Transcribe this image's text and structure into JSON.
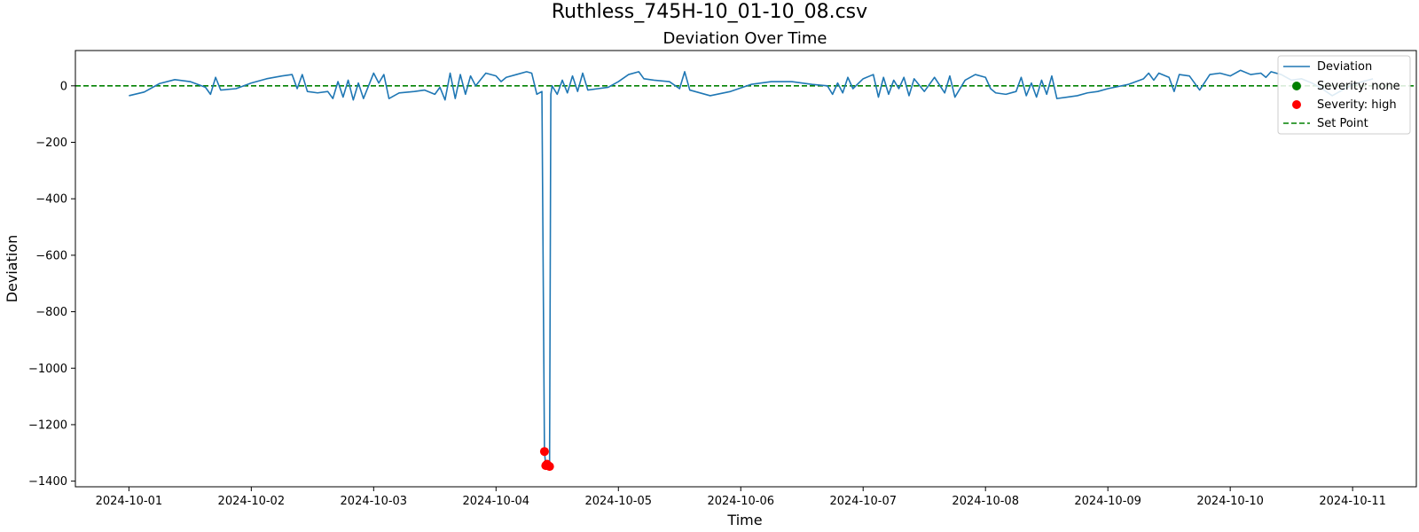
{
  "figure": {
    "suptitle": "Ruthless_745H-10_01-10_08.csv"
  },
  "chart_data": {
    "type": "line",
    "title": "Deviation Over Time",
    "xlabel": "Time",
    "ylabel": "Deviation",
    "x_type": "datetime",
    "xlim": [
      "2024-09-30T13:30:00",
      "2024-10-11T12:30:00"
    ],
    "ylim": [
      -1420,
      125
    ],
    "xticks": [
      "2024-10-01",
      "2024-10-02",
      "2024-10-03",
      "2024-10-04",
      "2024-10-05",
      "2024-10-06",
      "2024-10-07",
      "2024-10-08",
      "2024-10-09",
      "2024-10-10",
      "2024-10-11"
    ],
    "yticks": [
      0,
      -200,
      -400,
      -600,
      -800,
      -1000,
      -1200,
      -1400
    ],
    "ytick_labels": [
      "0",
      "−200",
      "−400",
      "−600",
      "−800",
      "−1000",
      "−1200",
      "−1400"
    ],
    "grid": false,
    "legend_position": "upper-right",
    "series": [
      {
        "name": "Deviation",
        "kind": "line",
        "color": "#1f77b4",
        "points": [
          [
            "2024-10-01T00:00",
            -35
          ],
          [
            "2024-10-01T03:00",
            -22
          ],
          [
            "2024-10-01T06:00",
            8
          ],
          [
            "2024-10-01T09:00",
            22
          ],
          [
            "2024-10-01T12:00",
            15
          ],
          [
            "2024-10-01T15:00",
            -5
          ],
          [
            "2024-10-01T16:00",
            -30
          ],
          [
            "2024-10-01T17:00",
            30
          ],
          [
            "2024-10-01T18:00",
            -15
          ],
          [
            "2024-10-01T21:00",
            -10
          ],
          [
            "2024-10-02T00:00",
            10
          ],
          [
            "2024-10-02T03:00",
            25
          ],
          [
            "2024-10-02T06:00",
            35
          ],
          [
            "2024-10-02T08:00",
            40
          ],
          [
            "2024-10-02T09:00",
            -10
          ],
          [
            "2024-10-02T10:00",
            40
          ],
          [
            "2024-10-02T11:00",
            -20
          ],
          [
            "2024-10-02T13:00",
            -25
          ],
          [
            "2024-10-02T15:00",
            -20
          ],
          [
            "2024-10-02T16:00",
            -45
          ],
          [
            "2024-10-02T17:00",
            15
          ],
          [
            "2024-10-02T18:00",
            -40
          ],
          [
            "2024-10-02T19:00",
            20
          ],
          [
            "2024-10-02T20:00",
            -50
          ],
          [
            "2024-10-02T21:00",
            10
          ],
          [
            "2024-10-02T22:00",
            -45
          ],
          [
            "2024-10-03T00:00",
            45
          ],
          [
            "2024-10-03T01:00",
            10
          ],
          [
            "2024-10-03T02:00",
            40
          ],
          [
            "2024-10-03T03:00",
            -45
          ],
          [
            "2024-10-03T05:00",
            -25
          ],
          [
            "2024-10-03T08:00",
            -20
          ],
          [
            "2024-10-03T10:00",
            -15
          ],
          [
            "2024-10-03T12:00",
            -30
          ],
          [
            "2024-10-03T13:00",
            -5
          ],
          [
            "2024-10-03T14:00",
            -50
          ],
          [
            "2024-10-03T15:00",
            45
          ],
          [
            "2024-10-03T16:00",
            -45
          ],
          [
            "2024-10-03T17:00",
            40
          ],
          [
            "2024-10-03T18:00",
            -30
          ],
          [
            "2024-10-03T19:00",
            35
          ],
          [
            "2024-10-03T20:00",
            0
          ],
          [
            "2024-10-03T22:00",
            45
          ],
          [
            "2024-10-04T00:00",
            35
          ],
          [
            "2024-10-04T01:00",
            15
          ],
          [
            "2024-10-04T02:00",
            30
          ],
          [
            "2024-10-04T04:00",
            40
          ],
          [
            "2024-10-04T06:00",
            50
          ],
          [
            "2024-10-04T07:00",
            45
          ],
          [
            "2024-10-04T08:00",
            -30
          ],
          [
            "2024-10-04T09:00",
            -20
          ],
          [
            "2024-10-04T09:30",
            -1295
          ],
          [
            "2024-10-04T09:45",
            -1345
          ],
          [
            "2024-10-04T10:00",
            -1340
          ],
          [
            "2024-10-04T10:15",
            -1345
          ],
          [
            "2024-10-04T10:30",
            -1348
          ],
          [
            "2024-10-04T10:45",
            -30
          ],
          [
            "2024-10-04T11:00",
            0
          ],
          [
            "2024-10-04T12:00",
            -30
          ],
          [
            "2024-10-04T13:00",
            20
          ],
          [
            "2024-10-04T14:00",
            -25
          ],
          [
            "2024-10-04T15:00",
            35
          ],
          [
            "2024-10-04T16:00",
            -20
          ],
          [
            "2024-10-04T17:00",
            45
          ],
          [
            "2024-10-04T18:00",
            -15
          ],
          [
            "2024-10-04T20:00",
            -10
          ],
          [
            "2024-10-04T22:00",
            -5
          ],
          [
            "2024-10-05T00:00",
            15
          ],
          [
            "2024-10-05T02:00",
            40
          ],
          [
            "2024-10-05T04:00",
            50
          ],
          [
            "2024-10-05T05:00",
            25
          ],
          [
            "2024-10-05T07:00",
            20
          ],
          [
            "2024-10-05T10:00",
            15
          ],
          [
            "2024-10-05T12:00",
            -10
          ],
          [
            "2024-10-05T13:00",
            50
          ],
          [
            "2024-10-05T14:00",
            -15
          ],
          [
            "2024-10-05T18:00",
            -35
          ],
          [
            "2024-10-05T22:00",
            -20
          ],
          [
            "2024-10-06T02:00",
            5
          ],
          [
            "2024-10-06T06:00",
            15
          ],
          [
            "2024-10-06T10:00",
            15
          ],
          [
            "2024-10-06T14:00",
            5
          ],
          [
            "2024-10-06T17:00",
            0
          ],
          [
            "2024-10-06T18:00",
            -30
          ],
          [
            "2024-10-06T19:00",
            10
          ],
          [
            "2024-10-06T20:00",
            -25
          ],
          [
            "2024-10-06T21:00",
            30
          ],
          [
            "2024-10-06T22:00",
            -10
          ],
          [
            "2024-10-07T00:00",
            25
          ],
          [
            "2024-10-07T02:00",
            40
          ],
          [
            "2024-10-07T03:00",
            -40
          ],
          [
            "2024-10-07T04:00",
            30
          ],
          [
            "2024-10-07T05:00",
            -30
          ],
          [
            "2024-10-07T06:00",
            20
          ],
          [
            "2024-10-07T07:00",
            -10
          ],
          [
            "2024-10-07T08:00",
            30
          ],
          [
            "2024-10-07T09:00",
            -35
          ],
          [
            "2024-10-07T10:00",
            25
          ],
          [
            "2024-10-07T12:00",
            -20
          ],
          [
            "2024-10-07T14:00",
            30
          ],
          [
            "2024-10-07T16:00",
            -25
          ],
          [
            "2024-10-07T17:00",
            35
          ],
          [
            "2024-10-07T18:00",
            -40
          ],
          [
            "2024-10-07T20:00",
            20
          ],
          [
            "2024-10-07T22:00",
            40
          ],
          [
            "2024-10-08T00:00",
            30
          ],
          [
            "2024-10-08T01:00",
            -10
          ],
          [
            "2024-10-08T02:00",
            -25
          ],
          [
            "2024-10-08T04:00",
            -30
          ],
          [
            "2024-10-08T06:00",
            -20
          ],
          [
            "2024-10-08T07:00",
            30
          ],
          [
            "2024-10-08T08:00",
            -35
          ],
          [
            "2024-10-08T09:00",
            10
          ],
          [
            "2024-10-08T10:00",
            -40
          ],
          [
            "2024-10-08T11:00",
            20
          ],
          [
            "2024-10-08T12:00",
            -30
          ],
          [
            "2024-10-08T13:00",
            35
          ],
          [
            "2024-10-08T14:00",
            -45
          ],
          [
            "2024-10-08T16:00",
            -40
          ],
          [
            "2024-10-08T18:00",
            -35
          ],
          [
            "2024-10-08T20:00",
            -25
          ],
          [
            "2024-10-08T22:00",
            -20
          ],
          [
            "2024-10-09T00:00",
            -10
          ],
          [
            "2024-10-09T04:00",
            5
          ],
          [
            "2024-10-09T07:00",
            25
          ],
          [
            "2024-10-09T08:00",
            45
          ],
          [
            "2024-10-09T09:00",
            20
          ],
          [
            "2024-10-09T10:00",
            45
          ],
          [
            "2024-10-09T12:00",
            30
          ],
          [
            "2024-10-09T13:00",
            -20
          ],
          [
            "2024-10-09T14:00",
            40
          ],
          [
            "2024-10-09T16:00",
            35
          ],
          [
            "2024-10-09T18:00",
            -15
          ],
          [
            "2024-10-09T20:00",
            40
          ],
          [
            "2024-10-09T22:00",
            45
          ],
          [
            "2024-10-10T00:00",
            35
          ],
          [
            "2024-10-10T02:00",
            55
          ],
          [
            "2024-10-10T04:00",
            40
          ],
          [
            "2024-10-10T06:00",
            45
          ],
          [
            "2024-10-10T07:00",
            30
          ],
          [
            "2024-10-10T08:00",
            50
          ],
          [
            "2024-10-10T10:00",
            40
          ],
          [
            "2024-10-10T12:00",
            20
          ],
          [
            "2024-10-10T14:00",
            25
          ],
          [
            "2024-10-10T16:00",
            10
          ],
          [
            "2024-10-10T18:00",
            -10
          ],
          [
            "2024-10-10T20:00",
            -35
          ],
          [
            "2024-10-10T22:00",
            -15
          ],
          [
            "2024-10-11T00:00",
            5
          ],
          [
            "2024-10-11T02:00",
            15
          ],
          [
            "2024-10-11T04:00",
            25
          ]
        ]
      },
      {
        "name": "Severity: none",
        "kind": "scatter",
        "color": "#008000",
        "points": []
      },
      {
        "name": "Severity: high",
        "kind": "scatter",
        "color": "#ff0000",
        "points": [
          [
            "2024-10-04T09:30",
            -1295
          ],
          [
            "2024-10-04T09:45",
            -1345
          ],
          [
            "2024-10-04T10:00",
            -1340
          ],
          [
            "2024-10-04T10:15",
            -1345
          ],
          [
            "2024-10-04T10:30",
            -1348
          ]
        ]
      },
      {
        "name": "Set Point",
        "kind": "hline",
        "style": "dashed",
        "color": "#008000",
        "value": 0
      }
    ]
  }
}
